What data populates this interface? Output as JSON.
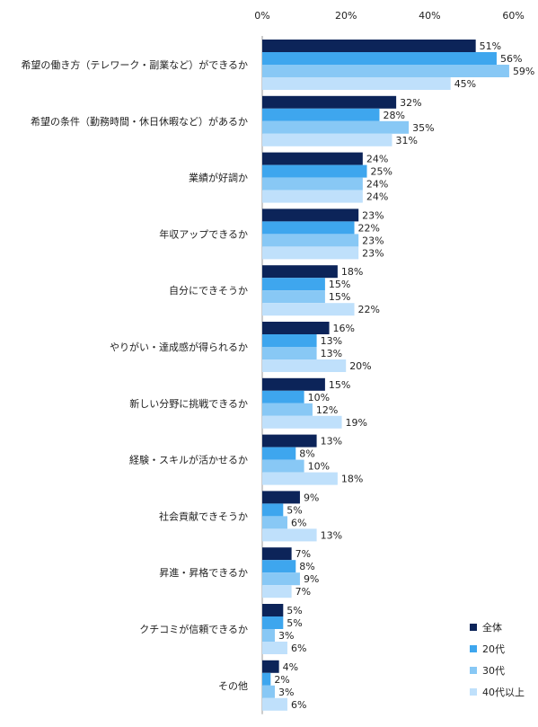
{
  "chart_data": {
    "type": "bar",
    "orientation": "horizontal",
    "xlim": [
      0,
      60
    ],
    "ticks": [
      0,
      20,
      40,
      60
    ],
    "tick_suffix": "%",
    "value_suffix": "%",
    "grid": false,
    "legend_position": "bottom-right",
    "categories": [
      "希望の働き方（テレワーク・副業など）ができるか",
      "希望の条件（勤務時間・休日休暇など）があるか",
      "業績が好調か",
      "年収アップできるか",
      "自分にできそうか",
      "やりがい・達成感が得られるか",
      "新しい分野に挑戦できるか",
      "経験・スキルが活かせるか",
      "社会貢献できそうか",
      "昇進・昇格できるか",
      "クチコミが信頼できるか",
      "その他"
    ],
    "series": [
      {
        "name": "全体",
        "color": "#0c2459",
        "values": [
          51,
          32,
          24,
          23,
          18,
          16,
          15,
          13,
          9,
          7,
          5,
          4
        ]
      },
      {
        "name": "20代",
        "color": "#3ea6ee",
        "values": [
          56,
          28,
          25,
          22,
          15,
          13,
          10,
          8,
          5,
          8,
          5,
          2
        ]
      },
      {
        "name": "30代",
        "color": "#88c8f5",
        "values": [
          59,
          35,
          24,
          23,
          15,
          13,
          12,
          10,
          6,
          9,
          3,
          3
        ]
      },
      {
        "name": "40代以上",
        "color": "#bfe0fb",
        "values": [
          45,
          31,
          24,
          23,
          22,
          20,
          19,
          18,
          13,
          7,
          6,
          6
        ]
      }
    ]
  }
}
